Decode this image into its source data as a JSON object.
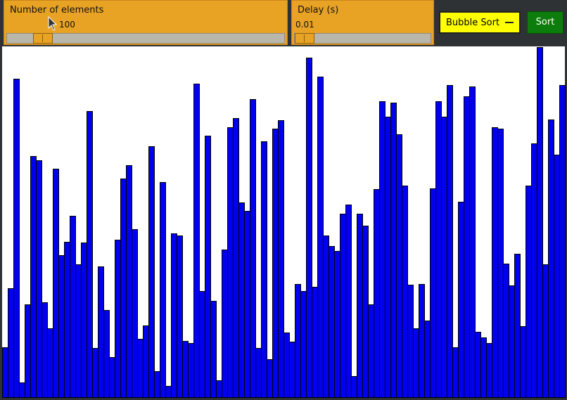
{
  "controls": {
    "elements": {
      "title": "Number of elements",
      "value": "100",
      "fraction": 0.1
    },
    "delay": {
      "title": "Delay (s)",
      "value": "0.01",
      "fraction": 0.0
    },
    "algorithm": {
      "selected": "Bubble Sort"
    },
    "sort_button": {
      "label": "Sort"
    }
  },
  "colors": {
    "bar": "#0000ee",
    "panel": "#e8a325",
    "select": "#ffff00",
    "sort_button": "#0c7c0c"
  },
  "visualization": {
    "element_count": 100,
    "max_value": 500,
    "values": [
      72,
      156,
      454,
      22,
      133,
      344,
      338,
      136,
      99,
      326,
      203,
      222,
      259,
      190,
      221,
      408,
      71,
      187,
      125,
      58,
      225,
      312,
      331,
      240,
      84,
      103,
      358,
      38,
      307,
      17,
      234,
      231,
      81,
      78,
      447,
      152,
      373,
      138,
      25,
      211,
      385,
      398,
      278,
      266,
      425,
      71,
      365,
      55,
      383,
      395,
      93,
      80,
      162,
      152,
      484,
      158,
      457,
      231,
      216,
      209,
      262,
      275,
      31,
      262,
      245,
      133,
      297,
      422,
      400,
      420,
      375,
      302,
      161,
      99,
      162,
      110,
      298,
      422,
      400,
      445,
      72,
      279,
      429,
      443,
      94,
      86,
      78,
      385,
      383,
      191,
      160,
      205,
      102,
      302,
      362,
      499,
      190,
      396,
      346,
      445
    ]
  }
}
